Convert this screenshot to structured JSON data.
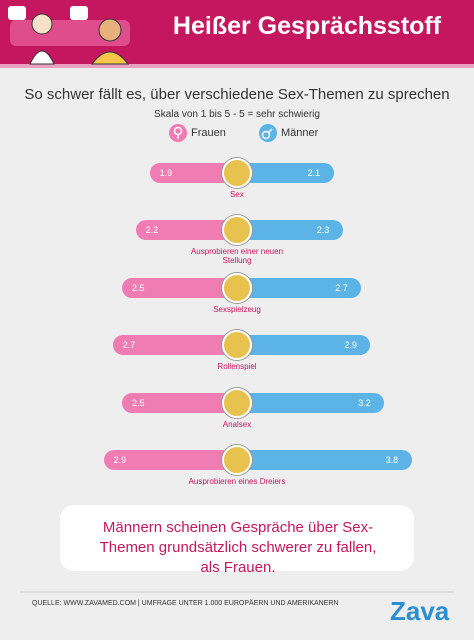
{
  "header": {
    "title": "Heißer Gesprächsstoff"
  },
  "chart_data": {
    "type": "butterfly",
    "title": "So schwer fällt es, über verschiedene Sex-Themen zu sprechen",
    "subtitle": "Skala von 1 bis 5 - 5 = sehr schwierig",
    "categories": [
      "Sex",
      "Ausprobieren einer neuen Stellung",
      "Sexspielzeug",
      "Rollenspiel",
      "Analsex",
      "Ausprobieren eines Dreiers"
    ],
    "series": [
      {
        "name": "Frauen",
        "color": "#f07cb4",
        "values": [
          1.9,
          2.2,
          2.5,
          2.7,
          2.5,
          2.9
        ]
      },
      {
        "name": "Männer",
        "color": "#5bb4e5",
        "values": [
          2.1,
          2.3,
          2.7,
          2.9,
          3.2,
          3.8
        ]
      }
    ]
  },
  "quote": "Männern scheinen Gespräche über Sex-Themen grundsätzlich schwerer zu fallen, als Frauen.",
  "footer": {
    "source": "QUELLE: WWW.ZAVAMED.COM | UMFRAGE UNTER 1.000 EUROPÄERN UND AMERIKANERN",
    "brand": "Zava"
  }
}
